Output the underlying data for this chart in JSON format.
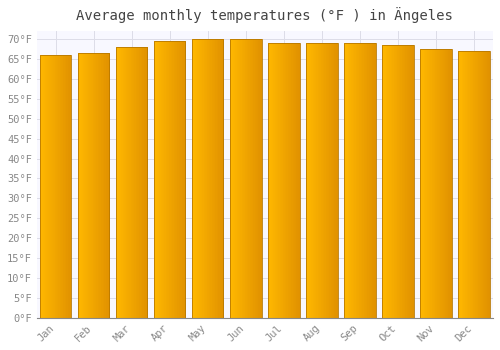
{
  "title": "Average monthly temperatures (°F ) in Ängeles",
  "months": [
    "Jan",
    "Feb",
    "Mar",
    "Apr",
    "May",
    "Jun",
    "Jul",
    "Aug",
    "Sep",
    "Oct",
    "Nov",
    "Dec"
  ],
  "values": [
    66,
    66.5,
    68,
    69.5,
    70,
    70,
    69,
    69,
    69,
    68.5,
    67.5,
    67
  ],
  "bar_color_left": "#FFB900",
  "bar_color_right": "#E8960A",
  "bar_edge_color": "#B87800",
  "background_color": "#FFFFFF",
  "plot_bg_color": "#F8F8FF",
  "grid_color": "#DDDDE8",
  "yticks": [
    0,
    5,
    10,
    15,
    20,
    25,
    30,
    35,
    40,
    45,
    50,
    55,
    60,
    65,
    70
  ],
  "ylim": [
    0,
    72
  ],
  "title_fontsize": 10,
  "tick_fontsize": 7.5,
  "tick_color": "#888888",
  "title_color": "#444444"
}
